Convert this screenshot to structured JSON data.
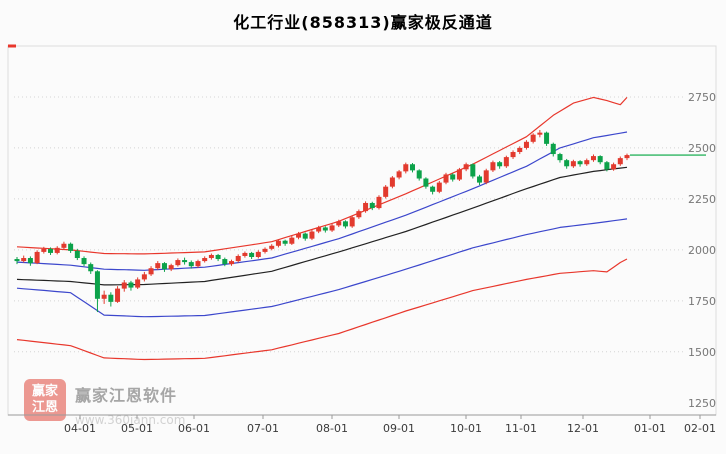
{
  "title": "化工行业(858313)赢家极反通道",
  "watermark": {
    "logo_line1": "赢家",
    "logo_line2": "江恩",
    "name": "赢家江恩软件",
    "url": "www.360jann.com"
  },
  "chart_data": {
    "type": "candlestick",
    "title": "化工行业(858313)赢家极反通道",
    "ylim": [
      1190,
      3000
    ],
    "y_ticks": [
      2750,
      2500,
      2250,
      2000,
      1750,
      1500,
      1250
    ],
    "x_tick_labels": [
      "04-01",
      "05-01",
      "06-01",
      "07-01",
      "08-01",
      "09-01",
      "10-01",
      "11-01",
      "12-01",
      "01-01",
      "02-01"
    ],
    "legend": [
      "upper-red-band",
      "upper-blue-band",
      "middle-black-line",
      "lower-blue-band",
      "lower-red-band",
      "kline"
    ],
    "ohlc": [
      [
        1955,
        1965,
        1930,
        1945
      ],
      [
        1945,
        1972,
        1938,
        1960
      ],
      [
        1960,
        1968,
        1922,
        1935
      ],
      [
        1935,
        1998,
        1930,
        1990
      ],
      [
        1990,
        2015,
        1982,
        2005
      ],
      [
        2005,
        2012,
        1975,
        1985
      ],
      [
        1985,
        2018,
        1978,
        2010
      ],
      [
        2010,
        2040,
        2002,
        2030
      ],
      [
        2030,
        2036,
        1985,
        1995
      ],
      [
        1995,
        2005,
        1950,
        1960
      ],
      [
        1960,
        1968,
        1920,
        1930
      ],
      [
        1930,
        1938,
        1882,
        1895
      ],
      [
        1895,
        1900,
        1695,
        1760
      ],
      [
        1760,
        1800,
        1735,
        1780
      ],
      [
        1780,
        1792,
        1722,
        1745
      ],
      [
        1745,
        1822,
        1740,
        1810
      ],
      [
        1810,
        1852,
        1795,
        1840
      ],
      [
        1840,
        1848,
        1800,
        1815
      ],
      [
        1815,
        1865,
        1808,
        1855
      ],
      [
        1855,
        1892,
        1845,
        1880
      ],
      [
        1880,
        1920,
        1872,
        1910
      ],
      [
        1910,
        1945,
        1902,
        1935
      ],
      [
        1935,
        1940,
        1892,
        1905
      ],
      [
        1905,
        1932,
        1896,
        1925
      ],
      [
        1925,
        1958,
        1918,
        1950
      ],
      [
        1950,
        1962,
        1928,
        1940
      ],
      [
        1940,
        1948,
        1908,
        1920
      ],
      [
        1920,
        1952,
        1912,
        1945
      ],
      [
        1945,
        1968,
        1938,
        1960
      ],
      [
        1960,
        1982,
        1952,
        1975
      ],
      [
        1975,
        1980,
        1945,
        1955
      ],
      [
        1955,
        1962,
        1920,
        1930
      ],
      [
        1930,
        1952,
        1922,
        1945
      ],
      [
        1945,
        1978,
        1938,
        1970
      ],
      [
        1970,
        1992,
        1962,
        1985
      ],
      [
        1985,
        1990,
        1955,
        1965
      ],
      [
        1965,
        1998,
        1958,
        1990
      ],
      [
        1990,
        2012,
        1982,
        2005
      ],
      [
        2005,
        2028,
        1998,
        2020
      ],
      [
        2020,
        2052,
        2012,
        2045
      ],
      [
        2045,
        2050,
        2020,
        2030
      ],
      [
        2030,
        2068,
        2024,
        2060
      ],
      [
        2060,
        2088,
        2052,
        2080
      ],
      [
        2080,
        2085,
        2045,
        2055
      ],
      [
        2055,
        2098,
        2048,
        2090
      ],
      [
        2090,
        2118,
        2082,
        2110
      ],
      [
        2110,
        2116,
        2085,
        2095
      ],
      [
        2095,
        2128,
        2088,
        2120
      ],
      [
        2120,
        2148,
        2112,
        2140
      ],
      [
        2140,
        2145,
        2105,
        2115
      ],
      [
        2115,
        2168,
        2108,
        2160
      ],
      [
        2160,
        2198,
        2152,
        2190
      ],
      [
        2190,
        2238,
        2182,
        2230
      ],
      [
        2230,
        2236,
        2195,
        2205
      ],
      [
        2205,
        2268,
        2198,
        2260
      ],
      [
        2260,
        2318,
        2252,
        2310
      ],
      [
        2310,
        2362,
        2302,
        2355
      ],
      [
        2355,
        2392,
        2346,
        2385
      ],
      [
        2385,
        2428,
        2375,
        2420
      ],
      [
        2420,
        2426,
        2380,
        2390
      ],
      [
        2390,
        2395,
        2340,
        2350
      ],
      [
        2350,
        2356,
        2300,
        2310
      ],
      [
        2310,
        2315,
        2272,
        2285
      ],
      [
        2285,
        2338,
        2278,
        2330
      ],
      [
        2330,
        2378,
        2322,
        2370
      ],
      [
        2370,
        2376,
        2335,
        2345
      ],
      [
        2345,
        2402,
        2338,
        2395
      ],
      [
        2395,
        2428,
        2386,
        2420
      ],
      [
        2420,
        2424,
        2350,
        2360
      ],
      [
        2360,
        2368,
        2318,
        2330
      ],
      [
        2330,
        2398,
        2322,
        2390
      ],
      [
        2390,
        2438,
        2382,
        2430
      ],
      [
        2430,
        2436,
        2398,
        2410
      ],
      [
        2410,
        2462,
        2402,
        2455
      ],
      [
        2455,
        2488,
        2446,
        2480
      ],
      [
        2480,
        2508,
        2470,
        2500
      ],
      [
        2500,
        2538,
        2492,
        2530
      ],
      [
        2530,
        2572,
        2522,
        2565
      ],
      [
        2565,
        2588,
        2552,
        2575
      ],
      [
        2575,
        2580,
        2510,
        2520
      ],
      [
        2520,
        2526,
        2458,
        2470
      ],
      [
        2470,
        2476,
        2428,
        2440
      ],
      [
        2440,
        2446,
        2398,
        2410
      ],
      [
        2410,
        2442,
        2402,
        2435
      ],
      [
        2435,
        2440,
        2408,
        2420
      ],
      [
        2420,
        2448,
        2412,
        2440
      ],
      [
        2440,
        2468,
        2432,
        2460
      ],
      [
        2460,
        2464,
        2420,
        2430
      ],
      [
        2430,
        2436,
        2385,
        2395
      ],
      [
        2395,
        2428,
        2388,
        2420
      ],
      [
        2420,
        2458,
        2412,
        2450
      ],
      [
        2450,
        2472,
        2440,
        2465
      ]
    ],
    "bands": [
      {
        "name": "upper-red-band",
        "color": "#e8372c",
        "width": 1.2,
        "points": [
          [
            0,
            2015
          ],
          [
            8,
            2000
          ],
          [
            13,
            1982
          ],
          [
            19,
            1980
          ],
          [
            28,
            1990
          ],
          [
            38,
            2040
          ],
          [
            48,
            2140
          ],
          [
            58,
            2275
          ],
          [
            68,
            2420
          ],
          [
            76,
            2555
          ],
          [
            80,
            2660
          ],
          [
            83,
            2720
          ],
          [
            86,
            2748
          ],
          [
            88,
            2732
          ],
          [
            90,
            2712
          ],
          [
            91,
            2748
          ]
        ]
      },
      {
        "name": "upper-blue-band",
        "color": "#3c47cc",
        "width": 1.2,
        "points": [
          [
            0,
            1940
          ],
          [
            8,
            1925
          ],
          [
            13,
            1905
          ],
          [
            19,
            1900
          ],
          [
            28,
            1915
          ],
          [
            38,
            1960
          ],
          [
            48,
            2055
          ],
          [
            58,
            2170
          ],
          [
            68,
            2300
          ],
          [
            76,
            2410
          ],
          [
            81,
            2500
          ],
          [
            86,
            2550
          ],
          [
            91,
            2578
          ]
        ]
      },
      {
        "name": "middle-black-line",
        "color": "#222222",
        "width": 1.2,
        "points": [
          [
            0,
            1855
          ],
          [
            8,
            1845
          ],
          [
            13,
            1828
          ],
          [
            19,
            1830
          ],
          [
            28,
            1845
          ],
          [
            38,
            1895
          ],
          [
            48,
            1990
          ],
          [
            58,
            2090
          ],
          [
            68,
            2205
          ],
          [
            76,
            2300
          ],
          [
            81,
            2355
          ],
          [
            86,
            2385
          ],
          [
            91,
            2405
          ]
        ]
      },
      {
        "name": "lower-blue-band",
        "color": "#3c47cc",
        "width": 1.2,
        "points": [
          [
            0,
            1812
          ],
          [
            8,
            1790
          ],
          [
            13,
            1680
          ],
          [
            19,
            1672
          ],
          [
            28,
            1678
          ],
          [
            38,
            1722
          ],
          [
            48,
            1805
          ],
          [
            58,
            1905
          ],
          [
            68,
            2010
          ],
          [
            76,
            2075
          ],
          [
            81,
            2110
          ],
          [
            86,
            2130
          ],
          [
            91,
            2152
          ]
        ]
      },
      {
        "name": "lower-red-band",
        "color": "#e8372c",
        "width": 1.2,
        "points": [
          [
            0,
            1560
          ],
          [
            8,
            1530
          ],
          [
            13,
            1470
          ],
          [
            19,
            1462
          ],
          [
            28,
            1468
          ],
          [
            38,
            1510
          ],
          [
            48,
            1590
          ],
          [
            58,
            1700
          ],
          [
            68,
            1800
          ],
          [
            76,
            1855
          ],
          [
            81,
            1885
          ],
          [
            86,
            1898
          ],
          [
            88,
            1892
          ],
          [
            90,
            1938
          ],
          [
            91,
            1955
          ]
        ]
      }
    ],
    "last_price_line": {
      "value": 2465,
      "color": "#00a63f"
    },
    "colors": {
      "up": "#e23a2e",
      "down": "#0ca24a",
      "grid": "#d4d4d4",
      "axis": "#9a9a9a",
      "frame": "#dcdcdc",
      "y_label": "#777777",
      "x_label": "#3a3a3a",
      "top_tick": "#e8372c"
    }
  }
}
